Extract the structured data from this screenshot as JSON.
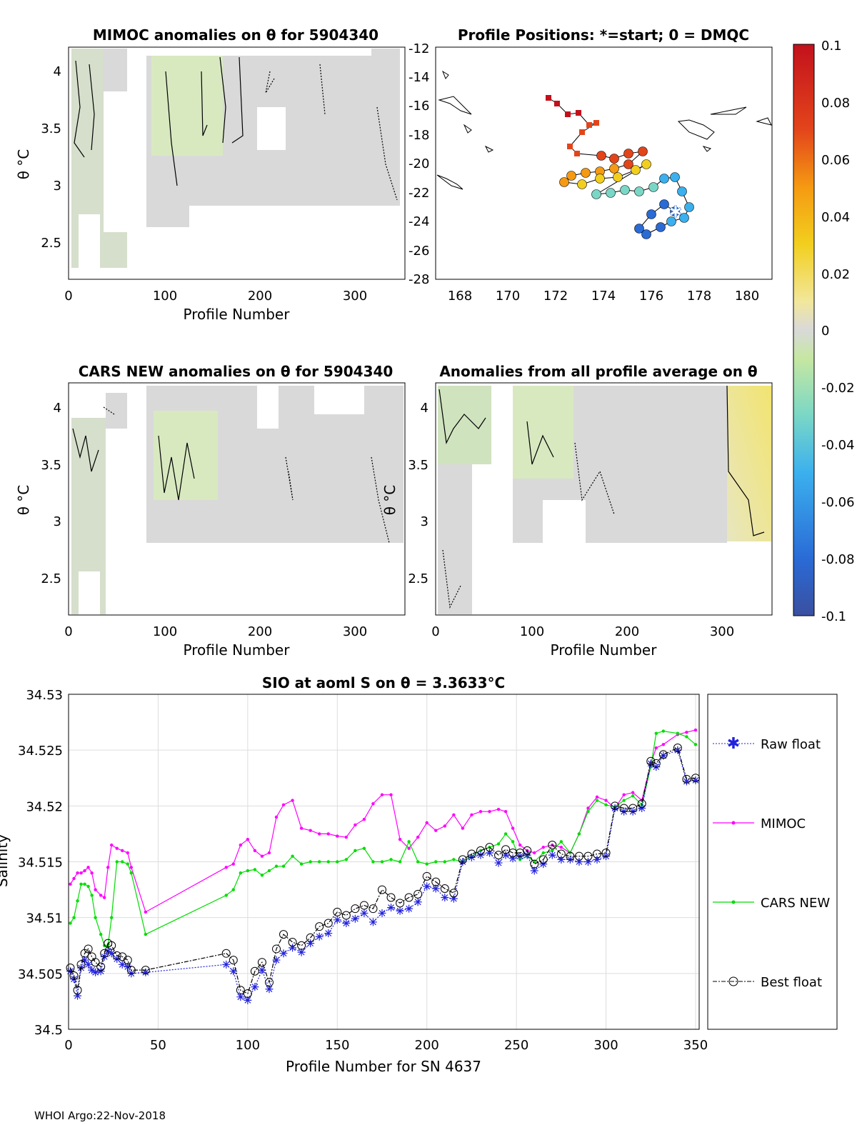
{
  "colorbar": {
    "ticks": [
      "0.1",
      "0.08",
      "0.06",
      "0.04",
      "0.02",
      "0",
      "-0.02",
      "-0.04",
      "-0.06",
      "-0.08",
      "-0.1"
    ],
    "colors": [
      "#3a4fa0",
      "#2a6bd6",
      "#3bb0ee",
      "#7ad7c6",
      "#c6e7a2",
      "#d9d9d9",
      "#f2e79b",
      "#f2cf1e",
      "#f59a12",
      "#e3451b",
      "#c3111c"
    ]
  },
  "panel1": {
    "title": "MIMOC anomalies on θ  for 5904340",
    "ylabel": "θ °C",
    "xlabel": "Profile Number",
    "xticks": [
      "0",
      "100",
      "200",
      "300"
    ],
    "yticks": [
      "4",
      "3.5",
      "3",
      "2.5"
    ]
  },
  "panel2": {
    "title": "Profile Positions: *=start; 0 = DMQC",
    "xticks": [
      "168",
      "170",
      "172",
      "174",
      "176",
      "178",
      "180"
    ],
    "yticks": [
      "-12",
      "-14",
      "-16",
      "-18",
      "-20",
      "-22",
      "-24",
      "-26",
      "-28"
    ]
  },
  "panel3": {
    "title": "CARS NEW anomalies on θ for 5904340",
    "ylabel": "θ °C",
    "xlabel": "Profile Number",
    "xticks": [
      "0",
      "100",
      "200",
      "300"
    ],
    "yticks": [
      "4",
      "3.5",
      "3",
      "2.5"
    ]
  },
  "panel4": {
    "title": "Anomalies from all profile average on θ",
    "ylabel": "θ °C",
    "xlabel": "Profile Number",
    "xticks": [
      "0",
      "100",
      "200",
      "300"
    ],
    "yticks": [
      "4",
      "3.5",
      "3",
      "2.5"
    ]
  },
  "footer": "WHOI Argo:22-Nov-2018",
  "chart_data": {
    "type": "line",
    "title": "SIO at aoml S on θ = 3.3633°C",
    "xlabel": "Profile Number for SN 4637",
    "ylabel": "Salinity",
    "xlim": [
      0,
      352
    ],
    "ylim": [
      34.5,
      34.53
    ],
    "xticks": [
      "0",
      "50",
      "100",
      "150",
      "200",
      "250",
      "300",
      "350"
    ],
    "yticks": [
      "34.53",
      "34.525",
      "34.52",
      "34.515",
      "34.51",
      "34.505",
      "34.5"
    ],
    "x": [
      1,
      3,
      5,
      7,
      9,
      11,
      13,
      15,
      18,
      20,
      22,
      24,
      27,
      30,
      33,
      35,
      43,
      88,
      92,
      96,
      100,
      104,
      108,
      112,
      116,
      120,
      125,
      130,
      135,
      140,
      145,
      150,
      155,
      160,
      165,
      170,
      175,
      180,
      185,
      190,
      195,
      200,
      205,
      210,
      215,
      220,
      225,
      230,
      235,
      240,
      244,
      248,
      252,
      256,
      260,
      265,
      270,
      275,
      280,
      285,
      290,
      295,
      300,
      305,
      310,
      315,
      320,
      325,
      328,
      332,
      340,
      345,
      350
    ],
    "series": [
      {
        "name": "Raw float",
        "values": [
          34.5052,
          34.5045,
          34.503,
          34.5055,
          34.5062,
          34.5058,
          34.5053,
          34.5051,
          34.5052,
          34.5065,
          34.507,
          34.5068,
          34.5063,
          34.5058,
          34.5056,
          34.505,
          34.5051,
          34.5058,
          34.5052,
          34.5029,
          34.5026,
          34.5038,
          34.5053,
          34.5036,
          34.5062,
          34.5068,
          34.5073,
          34.5069,
          34.5077,
          34.5083,
          34.5086,
          34.5098,
          34.5095,
          34.5099,
          34.5104,
          34.5096,
          34.5104,
          34.5109,
          34.5106,
          34.5108,
          34.5114,
          34.5128,
          34.5126,
          34.5118,
          34.5117,
          34.515,
          34.5154,
          34.5156,
          34.5158,
          34.5149,
          34.5156,
          34.5153,
          34.5155,
          34.5156,
          34.5142,
          34.5148,
          34.5156,
          34.5152,
          34.5152,
          34.515,
          34.515,
          34.5152,
          34.5155,
          34.5198,
          34.5195,
          34.5195,
          34.5198,
          34.5238,
          34.5235,
          34.5245,
          34.525,
          34.5222,
          34.5223
        ]
      },
      {
        "name": "MIMOC",
        "values": [
          34.513,
          34.5135,
          34.514,
          34.514,
          34.5142,
          34.5145,
          34.514,
          34.5125,
          34.512,
          34.5118,
          34.5145,
          34.5165,
          34.5162,
          34.516,
          34.5158,
          34.5145,
          34.5105,
          34.5145,
          34.5148,
          34.5165,
          34.517,
          34.516,
          34.5155,
          34.5158,
          34.519,
          34.5201,
          34.5205,
          34.518,
          34.5178,
          34.5175,
          34.5175,
          34.5173,
          34.5172,
          34.5183,
          34.5188,
          34.5202,
          34.521,
          34.521,
          34.517,
          34.5162,
          34.5172,
          34.5185,
          34.5178,
          34.5182,
          34.5192,
          34.518,
          34.5192,
          34.5195,
          34.5195,
          34.5197,
          34.5195,
          34.518,
          34.5165,
          34.516,
          34.5158,
          34.5163,
          34.5165,
          34.5163,
          34.5158,
          34.5175,
          34.5198,
          34.5208,
          34.5205,
          34.5198,
          34.521,
          34.5212,
          34.5205,
          34.5238,
          34.5252,
          34.5255,
          34.5264,
          34.5266,
          34.5268
        ]
      },
      {
        "name": "CARS NEW",
        "values": [
          34.5095,
          34.51,
          34.5115,
          34.513,
          34.513,
          34.5128,
          34.512,
          34.51,
          34.5085,
          34.5075,
          34.5075,
          34.51,
          34.515,
          34.515,
          34.5148,
          34.514,
          34.5085,
          34.512,
          34.5125,
          34.514,
          34.5142,
          34.5143,
          34.5138,
          34.5142,
          34.5146,
          34.5146,
          34.5155,
          34.5148,
          34.515,
          34.515,
          34.515,
          34.515,
          34.5152,
          34.516,
          34.5162,
          34.515,
          34.515,
          34.5152,
          34.515,
          34.5168,
          34.515,
          34.5148,
          34.515,
          34.515,
          34.5152,
          34.515,
          34.5155,
          34.516,
          34.5163,
          34.5166,
          34.5175,
          34.5168,
          34.5152,
          34.5155,
          34.515,
          34.5158,
          34.516,
          34.5168,
          34.5158,
          34.5175,
          34.5195,
          34.5205,
          34.5201,
          34.5199,
          34.5205,
          34.5209,
          34.5201,
          34.5235,
          34.5265,
          34.5267,
          34.5265,
          34.5262,
          34.5255
        ]
      },
      {
        "name": "Best float",
        "values": [
          34.5055,
          34.5048,
          34.5035,
          34.5058,
          34.5068,
          34.5072,
          34.5065,
          34.506,
          34.5056,
          34.5068,
          34.5077,
          34.5075,
          34.5066,
          34.5065,
          34.5062,
          34.5053,
          34.5053,
          34.5068,
          34.5062,
          34.5035,
          34.5032,
          34.5052,
          34.506,
          34.5042,
          34.5072,
          34.5085,
          34.5078,
          34.5075,
          34.5082,
          34.5092,
          34.5095,
          34.5105,
          34.5102,
          34.5108,
          34.5111,
          34.5108,
          34.5125,
          34.5118,
          34.5113,
          34.5118,
          34.5121,
          34.5137,
          34.5132,
          34.5126,
          34.5122,
          34.5152,
          34.5157,
          34.516,
          34.5163,
          34.5156,
          34.5161,
          34.5158,
          34.5158,
          34.516,
          34.5148,
          34.5152,
          34.5165,
          34.5157,
          34.5155,
          34.5155,
          34.5155,
          34.5157,
          34.5158,
          34.52,
          34.5198,
          34.5198,
          34.5202,
          34.524,
          34.5238,
          34.5246,
          34.5252,
          34.5224,
          34.5225
        ]
      }
    ]
  }
}
